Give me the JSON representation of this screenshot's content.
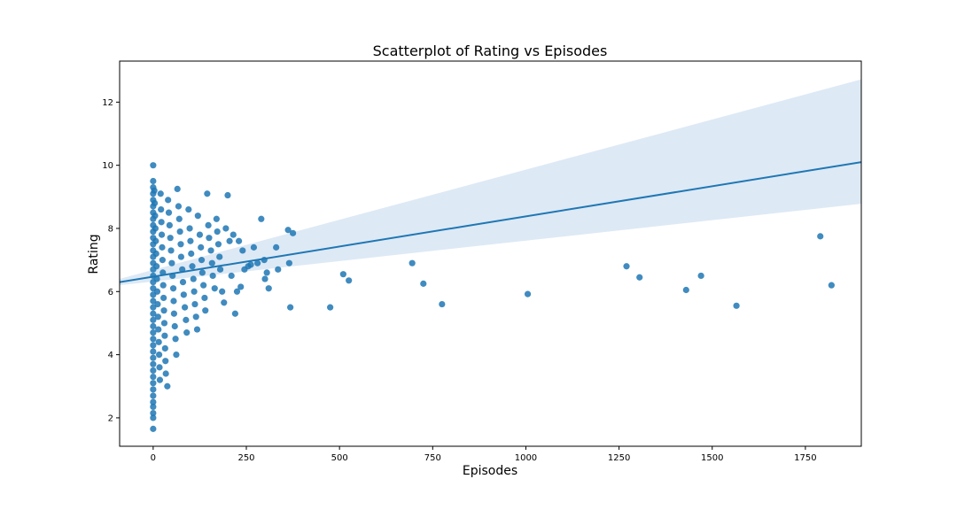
{
  "chart_data": {
    "type": "scatter",
    "title": "Scatterplot of Rating vs Episodes",
    "xlabel": "Episodes",
    "ylabel": "Rating",
    "xlim": [
      -90,
      1900
    ],
    "ylim": [
      1.1,
      13.3
    ],
    "xticks": [
      0,
      250,
      500,
      750,
      1000,
      1250,
      1500,
      1750
    ],
    "yticks": [
      2,
      4,
      6,
      8,
      10,
      12
    ],
    "grid": false,
    "colors": {
      "points": "#1f77b4",
      "line": "#1f77b4",
      "band": "#c6dbef"
    },
    "regression": {
      "x": [
        -90,
        1900
      ],
      "y": [
        6.3,
        10.1
      ],
      "ci_lower": [
        6.2,
        8.78
      ],
      "ci_upper": [
        6.4,
        12.72
      ]
    },
    "series": [
      {
        "points": [
          [
            0,
            10.0
          ],
          [
            0,
            9.5
          ],
          [
            0,
            9.3
          ],
          [
            0,
            9.1
          ],
          [
            0,
            8.9
          ],
          [
            0,
            8.7
          ],
          [
            0,
            8.5
          ],
          [
            0,
            8.3
          ],
          [
            0,
            8.1
          ],
          [
            0,
            7.9
          ],
          [
            0,
            7.7
          ],
          [
            0,
            7.5
          ],
          [
            0,
            7.3
          ],
          [
            0,
            7.1
          ],
          [
            0,
            6.9
          ],
          [
            0,
            6.7
          ],
          [
            0,
            6.5
          ],
          [
            0,
            6.3
          ],
          [
            0,
            6.1
          ],
          [
            0,
            5.9
          ],
          [
            0,
            5.7
          ],
          [
            0,
            5.5
          ],
          [
            0,
            5.3
          ],
          [
            0,
            5.1
          ],
          [
            0,
            4.9
          ],
          [
            0,
            4.7
          ],
          [
            0,
            4.5
          ],
          [
            0,
            4.3
          ],
          [
            0,
            4.1
          ],
          [
            0,
            3.9
          ],
          [
            0,
            3.7
          ],
          [
            0,
            3.5
          ],
          [
            0,
            3.3
          ],
          [
            0,
            3.1
          ],
          [
            0,
            2.9
          ],
          [
            0,
            2.7
          ],
          [
            0,
            2.5
          ],
          [
            0,
            2.35
          ],
          [
            0,
            2.15
          ],
          [
            0,
            2.0
          ],
          [
            0,
            1.65
          ],
          [
            3,
            9.2
          ],
          [
            4,
            8.8
          ],
          [
            5,
            8.4
          ],
          [
            6,
            8.0
          ],
          [
            7,
            7.6
          ],
          [
            8,
            7.2
          ],
          [
            9,
            6.8
          ],
          [
            10,
            6.4
          ],
          [
            11,
            6.0
          ],
          [
            12,
            5.6
          ],
          [
            13,
            5.2
          ],
          [
            14,
            4.8
          ],
          [
            15,
            4.4
          ],
          [
            16,
            4.0
          ],
          [
            17,
            3.6
          ],
          [
            18,
            3.2
          ],
          [
            20,
            9.1
          ],
          [
            21,
            8.6
          ],
          [
            22,
            8.2
          ],
          [
            23,
            7.8
          ],
          [
            24,
            7.4
          ],
          [
            25,
            7.0
          ],
          [
            26,
            6.6
          ],
          [
            27,
            6.2
          ],
          [
            28,
            5.8
          ],
          [
            29,
            5.4
          ],
          [
            30,
            5.0
          ],
          [
            31,
            4.6
          ],
          [
            32,
            4.2
          ],
          [
            33,
            3.8
          ],
          [
            34,
            3.4
          ],
          [
            38,
            3.0
          ],
          [
            40,
            8.9
          ],
          [
            42,
            8.5
          ],
          [
            44,
            8.1
          ],
          [
            46,
            7.7
          ],
          [
            48,
            7.3
          ],
          [
            50,
            6.9
          ],
          [
            52,
            6.5
          ],
          [
            54,
            6.1
          ],
          [
            55,
            5.7
          ],
          [
            56,
            5.3
          ],
          [
            58,
            4.9
          ],
          [
            60,
            4.5
          ],
          [
            62,
            4.0
          ],
          [
            65,
            9.25
          ],
          [
            68,
            8.7
          ],
          [
            70,
            8.3
          ],
          [
            72,
            7.9
          ],
          [
            74,
            7.5
          ],
          [
            75,
            7.1
          ],
          [
            78,
            6.7
          ],
          [
            80,
            6.3
          ],
          [
            82,
            5.9
          ],
          [
            85,
            5.5
          ],
          [
            88,
            5.1
          ],
          [
            90,
            4.7
          ],
          [
            95,
            8.6
          ],
          [
            98,
            8.0
          ],
          [
            100,
            7.6
          ],
          [
            102,
            7.2
          ],
          [
            105,
            6.8
          ],
          [
            108,
            6.4
          ],
          [
            110,
            6.0
          ],
          [
            112,
            5.6
          ],
          [
            115,
            5.2
          ],
          [
            118,
            4.8
          ],
          [
            120,
            8.4
          ],
          [
            125,
            7.8
          ],
          [
            128,
            7.4
          ],
          [
            130,
            7.0
          ],
          [
            132,
            6.6
          ],
          [
            135,
            6.2
          ],
          [
            138,
            5.8
          ],
          [
            140,
            5.4
          ],
          [
            145,
            9.1
          ],
          [
            148,
            8.1
          ],
          [
            150,
            7.7
          ],
          [
            155,
            7.3
          ],
          [
            158,
            6.9
          ],
          [
            160,
            6.5
          ],
          [
            165,
            6.1
          ],
          [
            170,
            8.3
          ],
          [
            172,
            7.9
          ],
          [
            175,
            7.5
          ],
          [
            178,
            7.1
          ],
          [
            180,
            6.7
          ],
          [
            185,
            6.0
          ],
          [
            190,
            5.65
          ],
          [
            195,
            8.0
          ],
          [
            200,
            9.05
          ],
          [
            205,
            7.6
          ],
          [
            210,
            6.5
          ],
          [
            215,
            7.8
          ],
          [
            220,
            5.3
          ],
          [
            225,
            6.0
          ],
          [
            230,
            7.6
          ],
          [
            235,
            6.15
          ],
          [
            240,
            7.3
          ],
          [
            245,
            6.7
          ],
          [
            255,
            6.8
          ],
          [
            262,
            6.85
          ],
          [
            270,
            7.4
          ],
          [
            280,
            6.9
          ],
          [
            290,
            8.3
          ],
          [
            298,
            7.0
          ],
          [
            300,
            6.4
          ],
          [
            305,
            6.6
          ],
          [
            310,
            6.1
          ],
          [
            330,
            7.4
          ],
          [
            335,
            6.7
          ],
          [
            362,
            7.95
          ],
          [
            365,
            6.9
          ],
          [
            368,
            5.5
          ],
          [
            375,
            7.85
          ],
          [
            475,
            5.5
          ],
          [
            510,
            6.55
          ],
          [
            525,
            6.35
          ],
          [
            695,
            6.9
          ],
          [
            725,
            6.25
          ],
          [
            775,
            5.6
          ],
          [
            1005,
            5.92
          ],
          [
            1270,
            6.8
          ],
          [
            1305,
            6.45
          ],
          [
            1430,
            6.05
          ],
          [
            1470,
            6.5
          ],
          [
            1565,
            5.55
          ],
          [
            1790,
            7.75
          ],
          [
            1820,
            6.2
          ]
        ]
      }
    ]
  }
}
